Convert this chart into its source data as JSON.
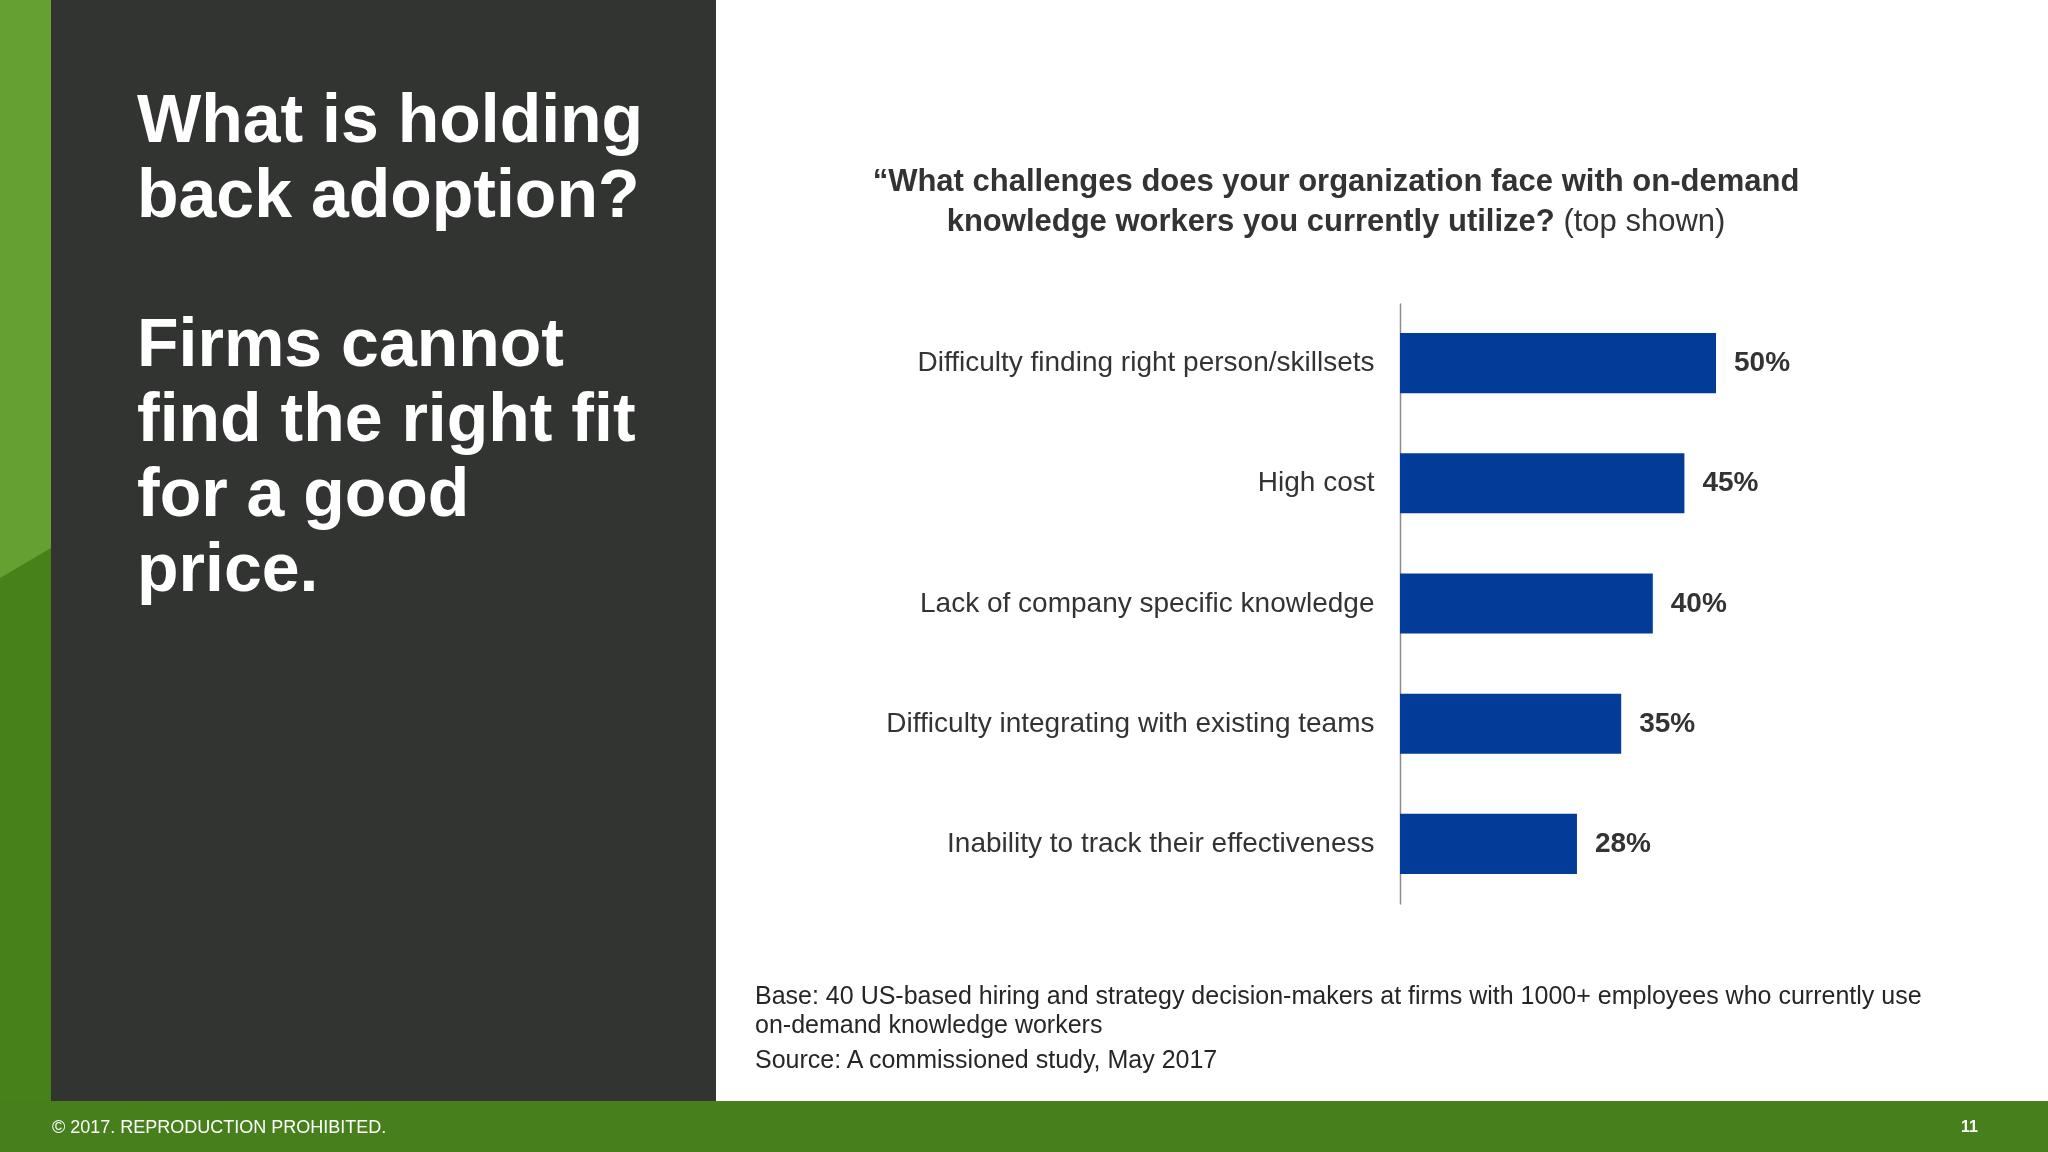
{
  "chart_data": {
    "type": "bar",
    "orientation": "horizontal",
    "title": "“What challenges does your organization face with on-demand knowledge workers you currently utilize? (top shown)",
    "categories": [
      "Difficulty finding right person/skillsets",
      "High cost",
      "Lack of company specific knowledge",
      "Difficulty integrating with existing teams",
      "Inability to track their effectiveness"
    ],
    "values": [
      50,
      45,
      40,
      35,
      28
    ],
    "color": "#023c98",
    "value_labels": [
      "50%",
      "45%",
      "40%",
      "35%",
      "28%"
    ],
    "annotations": [
      "What is holding back adoption?",
      "Firms cannot find the right fit for a good price.",
      "Base: 40 US-based hiring and strategy decision-makers at firms with 1000+ employees who currently use on-demand knowledge workers",
      "Source: A commissioned study, May 2017",
      "© 2017. REPRODUCTION PROHIBITED.",
      "11"
    ]
  }
}
